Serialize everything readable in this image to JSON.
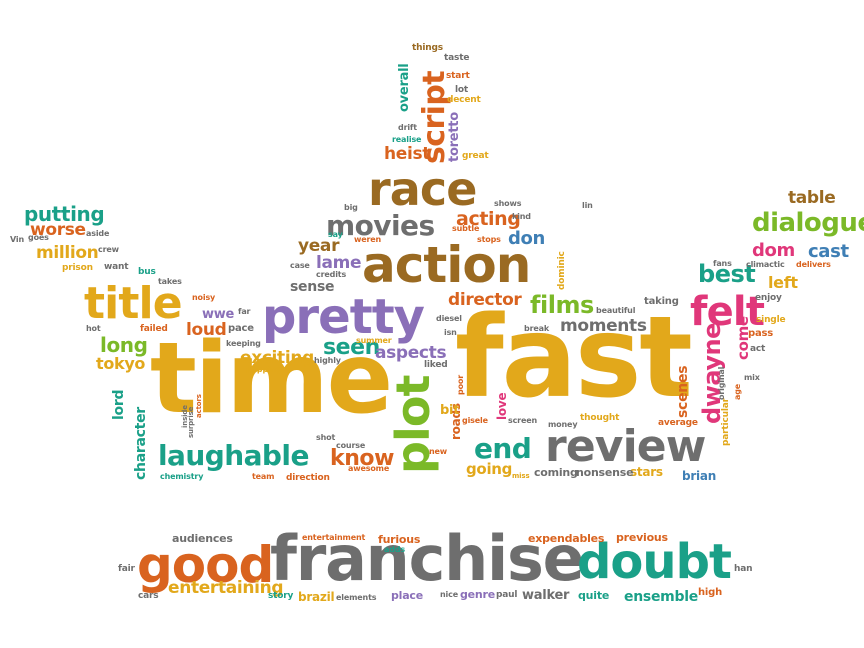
{
  "palette": {
    "gold": "#e2a81b",
    "orange": "#d9631f",
    "purple": "#8a6fb8",
    "green": "#2f9e5b",
    "brown": "#9a6a22",
    "gray": "#6e6e6e",
    "teal": "#1aa088",
    "pink": "#e0377a",
    "lime": "#7bb928",
    "blue": "#3f7fb5",
    "red": "#c8302a"
  },
  "words": [
    {
      "text": "fast",
      "color": "gold"
    },
    {
      "text": "time",
      "color": "gold"
    },
    {
      "text": "franchise",
      "color": "gray"
    },
    {
      "text": "action",
      "color": "brown"
    },
    {
      "text": "pretty",
      "color": "purple"
    },
    {
      "text": "good",
      "color": "orange"
    },
    {
      "text": "doubt",
      "color": "teal"
    },
    {
      "text": "review",
      "color": "gray"
    },
    {
      "text": "race",
      "color": "brown"
    },
    {
      "text": "plot",
      "color": "lime"
    },
    {
      "text": "title",
      "color": "gold"
    },
    {
      "text": "laughable",
      "color": "teal"
    },
    {
      "text": "movies",
      "color": "gray"
    },
    {
      "text": "felt",
      "color": "pink"
    },
    {
      "text": "script",
      "color": "orange"
    },
    {
      "text": "dialogue",
      "color": "lime"
    },
    {
      "text": "films",
      "color": "lime"
    },
    {
      "text": "end",
      "color": "teal"
    },
    {
      "text": "know",
      "color": "orange"
    },
    {
      "text": "dwayne",
      "color": "pink"
    },
    {
      "text": "best",
      "color": "teal"
    },
    {
      "text": "putting",
      "color": "teal"
    },
    {
      "text": "million",
      "color": "gold"
    },
    {
      "text": "worse",
      "color": "orange"
    },
    {
      "text": "acting",
      "color": "orange"
    },
    {
      "text": "seen",
      "color": "teal"
    },
    {
      "text": "director",
      "color": "orange"
    },
    {
      "text": "moments",
      "color": "gray"
    },
    {
      "text": "aspects",
      "color": "purple"
    },
    {
      "text": "exciting",
      "color": "gold"
    },
    {
      "text": "long",
      "color": "lime"
    },
    {
      "text": "entertaining",
      "color": "gold"
    },
    {
      "text": "heist",
      "color": "orange"
    },
    {
      "text": "year",
      "color": "brown"
    },
    {
      "text": "lame",
      "color": "purple"
    },
    {
      "text": "don",
      "color": "blue"
    },
    {
      "text": "dom",
      "color": "pink"
    },
    {
      "text": "cast",
      "color": "blue"
    },
    {
      "text": "table",
      "color": "brown"
    },
    {
      "text": "left",
      "color": "gold"
    },
    {
      "text": "tokyo",
      "color": "gold"
    },
    {
      "text": "loud",
      "color": "orange"
    },
    {
      "text": "wwe",
      "color": "purple"
    },
    {
      "text": "character",
      "color": "teal"
    },
    {
      "text": "lord",
      "color": "teal"
    },
    {
      "text": "going",
      "color": "gold"
    },
    {
      "text": "come",
      "color": "pink"
    },
    {
      "text": "scenes",
      "color": "orange"
    },
    {
      "text": "sense",
      "color": "gray"
    },
    {
      "text": "overall",
      "color": "teal"
    },
    {
      "text": "toretto",
      "color": "purple"
    },
    {
      "text": "furious",
      "color": "orange"
    },
    {
      "text": "place",
      "color": "purple"
    },
    {
      "text": "ensemble",
      "color": "teal"
    },
    {
      "text": "quite",
      "color": "teal"
    },
    {
      "text": "walker",
      "color": "gray"
    },
    {
      "text": "brazil",
      "color": "gold"
    },
    {
      "text": "stars",
      "color": "gold"
    },
    {
      "text": "coming",
      "color": "gray"
    },
    {
      "text": "nonsense",
      "color": "gray"
    },
    {
      "text": "brian",
      "color": "blue"
    },
    {
      "text": "love",
      "color": "pink"
    },
    {
      "text": "roads",
      "color": "orange"
    },
    {
      "text": "bit",
      "color": "gold"
    },
    {
      "text": "audiences",
      "color": "gray"
    },
    {
      "text": "expendables",
      "color": "orange"
    },
    {
      "text": "previous",
      "color": "orange"
    },
    {
      "text": "entertainment",
      "color": "orange"
    },
    {
      "text": "adds",
      "color": "teal"
    },
    {
      "text": "story",
      "color": "teal"
    },
    {
      "text": "elements",
      "color": "gray"
    },
    {
      "text": "nice",
      "color": "gray"
    },
    {
      "text": "genre",
      "color": "purple"
    },
    {
      "text": "paul",
      "color": "gray"
    },
    {
      "text": "high",
      "color": "orange"
    },
    {
      "text": "fair",
      "color": "gray"
    },
    {
      "text": "cars",
      "color": "gray"
    },
    {
      "text": "han",
      "color": "gray"
    },
    {
      "text": "things",
      "color": "brown"
    },
    {
      "text": "taste",
      "color": "gray"
    },
    {
      "text": "start",
      "color": "orange"
    },
    {
      "text": "lot",
      "color": "gray"
    },
    {
      "text": "decent",
      "color": "gold"
    },
    {
      "text": "drift",
      "color": "gray"
    },
    {
      "text": "realise",
      "color": "teal"
    },
    {
      "text": "great",
      "color": "gold"
    },
    {
      "text": "shows",
      "color": "gray"
    },
    {
      "text": "big",
      "color": "gray"
    },
    {
      "text": "kind",
      "color": "gray"
    },
    {
      "text": "subtle",
      "color": "orange"
    },
    {
      "text": "stops",
      "color": "orange"
    },
    {
      "text": "lin",
      "color": "gray"
    },
    {
      "text": "say",
      "color": "teal"
    },
    {
      "text": "weren",
      "color": "orange"
    },
    {
      "text": "case",
      "color": "gray"
    },
    {
      "text": "credits",
      "color": "gray"
    },
    {
      "text": "dominic",
      "color": "gold"
    },
    {
      "text": "diesel",
      "color": "gray"
    },
    {
      "text": "isn",
      "color": "gray"
    },
    {
      "text": "break",
      "color": "gray"
    },
    {
      "text": "beautiful",
      "color": "gray"
    },
    {
      "text": "taking",
      "color": "gray"
    },
    {
      "text": "enjoy",
      "color": "gray"
    },
    {
      "text": "single",
      "color": "gold"
    },
    {
      "text": "act",
      "color": "gray"
    },
    {
      "text": "pass",
      "color": "orange"
    },
    {
      "text": "mix",
      "color": "gray"
    },
    {
      "text": "climactic",
      "color": "gray"
    },
    {
      "text": "delivers",
      "color": "orange"
    },
    {
      "text": "fans",
      "color": "gray"
    },
    {
      "text": "particular",
      "color": "gold"
    },
    {
      "text": "original",
      "color": "gray"
    },
    {
      "text": "age",
      "color": "orange"
    },
    {
      "text": "average",
      "color": "orange"
    },
    {
      "text": "thought",
      "color": "gold"
    },
    {
      "text": "money",
      "color": "gray"
    },
    {
      "text": "screen",
      "color": "gray"
    },
    {
      "text": "gisele",
      "color": "orange"
    },
    {
      "text": "liked",
      "color": "gray"
    },
    {
      "text": "poor",
      "color": "orange"
    },
    {
      "text": "miss",
      "color": "gold"
    },
    {
      "text": "new",
      "color": "orange"
    },
    {
      "text": "awesome",
      "color": "orange"
    },
    {
      "text": "course",
      "color": "gray"
    },
    {
      "text": "shot",
      "color": "gray"
    },
    {
      "text": "direction",
      "color": "orange"
    },
    {
      "text": "team",
      "color": "orange"
    },
    {
      "text": "chemistry",
      "color": "teal"
    },
    {
      "text": "summer",
      "color": "gold"
    },
    {
      "text": "highly",
      "color": "gray"
    },
    {
      "text": "popping",
      "color": "gold"
    },
    {
      "text": "keeping",
      "color": "gray"
    },
    {
      "text": "pace",
      "color": "gray"
    },
    {
      "text": "far",
      "color": "gray"
    },
    {
      "text": "noisy",
      "color": "orange"
    },
    {
      "text": "failed",
      "color": "orange"
    },
    {
      "text": "takes",
      "color": "gray"
    },
    {
      "text": "bus",
      "color": "teal"
    },
    {
      "text": "want",
      "color": "gray"
    },
    {
      "text": "prison",
      "color": "gold"
    },
    {
      "text": "crew",
      "color": "gray"
    },
    {
      "text": "aside",
      "color": "gray"
    },
    {
      "text": "Vin",
      "color": "gray"
    },
    {
      "text": "goes",
      "color": "gray"
    },
    {
      "text": "hot",
      "color": "gray"
    },
    {
      "text": "inside",
      "color": "gray"
    },
    {
      "text": "actors",
      "color": "orange"
    },
    {
      "text": "surprise",
      "color": "gray"
    }
  ]
}
